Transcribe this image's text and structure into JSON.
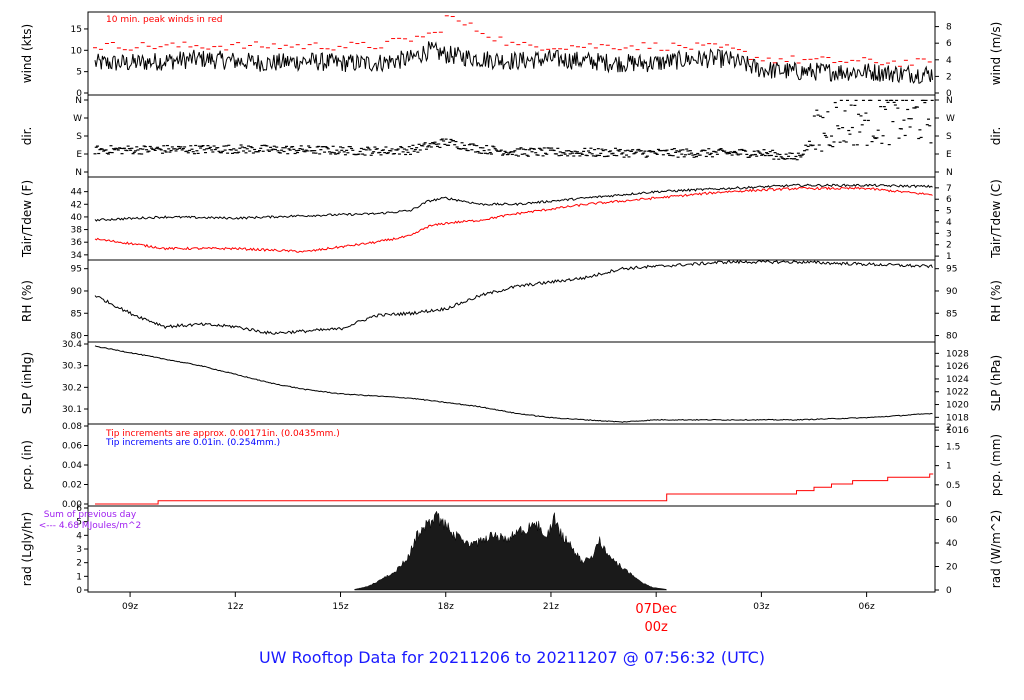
{
  "footer": {
    "title": "UW Rooftop Data for 20211206  to  20211207 @ 07:56:32  (UTC)"
  },
  "colors": {
    "obs": "#000000",
    "peak": "#ff0000",
    "dew": "#ff0000",
    "precip": "#ff0000",
    "note_red": "#ff0000",
    "note_blue": "#0000ff",
    "rad_note": "#a020f0",
    "date_label": "#ff0000"
  },
  "chart_data": [
    {
      "type": "line",
      "panel": "wind",
      "ylabel": "wind (kts)",
      "ylabel_right": "wind (m/s)",
      "ylim": [
        0,
        18.5
      ],
      "yticks": [
        0,
        5,
        10,
        15
      ],
      "yticks_right": [
        0,
        2,
        4,
        6,
        8
      ],
      "annotation": "10 min. peak winds in red",
      "series": [
        {
          "x": [
            8.0,
            9.0,
            10.0,
            11.0,
            12.0,
            13.0,
            14.0,
            15.0,
            16.0,
            17.0,
            17.5,
            18.0,
            19.0,
            20.0,
            21.0,
            22.0,
            23.0,
            24.0,
            25.0,
            26.0,
            27.0,
            28.0,
            29.0,
            30.0,
            31.0,
            31.9
          ],
          "values": [
            7,
            7,
            7.5,
            8,
            7.5,
            7,
            7.5,
            7,
            7,
            8,
            10,
            9,
            8,
            7.5,
            8,
            7.5,
            7,
            7,
            8,
            8,
            5.5,
            5,
            5,
            5,
            4.5,
            4.5
          ]
        },
        {
          "x": [
            8.0,
            10.0,
            12.0,
            14.0,
            16.0,
            17.8,
            18.0,
            20.0,
            22.0,
            24.0,
            26.0,
            27.0,
            29.0,
            31.9
          ],
          "values": [
            11,
            11,
            11,
            11,
            11,
            14,
            18,
            11,
            11,
            11,
            10.5,
            8,
            7.5,
            7
          ]
        }
      ]
    },
    {
      "type": "scatter",
      "panel": "dir",
      "ylabel": "dir.",
      "ylabel_right": "dir.",
      "yticks": [
        "N",
        "E",
        "S",
        "W",
        "N"
      ],
      "series": [
        {
          "x": [
            8.0,
            12.0,
            16.0,
            17.0,
            18.0,
            19.0,
            20.0,
            24.0,
            27.0,
            28.0,
            29.0,
            30.0,
            31.9
          ],
          "values": [
            110,
            115,
            105,
            110,
            150,
            115,
            100,
            95,
            95,
            70,
            250,
            270,
            280
          ]
        }
      ]
    },
    {
      "type": "line",
      "panel": "temp",
      "ylabel": "Tair/Tdew (F)",
      "ylabel_right": "Tair/Tdew (C)",
      "ylim": [
        33.5,
        46
      ],
      "yticks": [
        34,
        36,
        38,
        40,
        42,
        44
      ],
      "yticks_right": [
        1,
        2,
        3,
        4,
        5,
        6,
        7
      ],
      "series": [
        {
          "x": [
            8.0,
            10.0,
            12.0,
            14.0,
            16.0,
            17.0,
            17.5,
            18.0,
            19.0,
            20.0,
            22.0,
            24.0,
            26.0,
            28.0,
            30.0,
            31.9
          ],
          "values": [
            39.5,
            40,
            39.8,
            40.2,
            40.5,
            41,
            42.5,
            43,
            42,
            42,
            43,
            44,
            44.5,
            45,
            45,
            44.8
          ]
        },
        {
          "x": [
            8.0,
            9.0,
            10.0,
            12.0,
            14.0,
            16.0,
            17.0,
            17.5,
            18.0,
            19.0,
            20.0,
            22.0,
            24.0,
            26.0,
            28.0,
            30.0,
            31.9
          ],
          "values": [
            36.5,
            35.8,
            35,
            35,
            34.5,
            36,
            37,
            38.5,
            39,
            39.5,
            40.5,
            42,
            43,
            44,
            44.5,
            44.5,
            43.5
          ]
        }
      ]
    },
    {
      "type": "line",
      "panel": "rh",
      "ylabel": "RH (%)",
      "ylabel_right": "RH (%)",
      "ylim": [
        79,
        96.5
      ],
      "yticks": [
        80,
        85,
        90,
        95
      ],
      "yticks_right": [
        80,
        85,
        90,
        95
      ],
      "series": [
        {
          "x": [
            8.0,
            8.5,
            9.0,
            10.0,
            11.0,
            12.0,
            13.0,
            14.0,
            15.0,
            16.0,
            17.0,
            18.0,
            19.0,
            20.0,
            21.0,
            22.0,
            23.0,
            24.0,
            25.0,
            26.0,
            28.0,
            30.0,
            31.9
          ],
          "values": [
            89,
            87,
            85,
            82,
            82.5,
            82,
            80.5,
            81,
            81.5,
            84.5,
            85,
            86,
            89,
            91,
            92,
            93,
            95,
            95.5,
            96,
            96.5,
            96.5,
            96,
            95.5
          ]
        }
      ]
    },
    {
      "type": "line",
      "panel": "slp",
      "ylabel": "SLP (inHg)",
      "ylabel_right": "SLP (hPa)",
      "ylim": [
        30.04,
        30.4
      ],
      "yticks": [
        30.1,
        30.2,
        30.3,
        30.4
      ],
      "yticks_right": [
        1016,
        1018,
        1020,
        1022,
        1024,
        1026,
        1028
      ],
      "series": [
        {
          "x": [
            8.0,
            9.0,
            10.0,
            11.0,
            12.0,
            13.0,
            14.0,
            15.0,
            16.0,
            17.0,
            18.0,
            19.0,
            20.0,
            21.0,
            22.0,
            23.0,
            24.0,
            25.0,
            26.0,
            28.0,
            30.0,
            31.0,
            31.9
          ],
          "values": [
            30.39,
            30.36,
            30.33,
            30.3,
            30.26,
            30.22,
            30.19,
            30.17,
            30.16,
            30.15,
            30.13,
            30.11,
            30.08,
            30.06,
            30.05,
            30.04,
            30.05,
            30.05,
            30.05,
            30.05,
            30.06,
            30.07,
            30.08
          ]
        }
      ]
    },
    {
      "type": "line",
      "panel": "precip",
      "ylabel": "pcp. (in)",
      "ylabel_right": "pcp. (mm)",
      "ylim": [
        0,
        0.08
      ],
      "yticks": [
        0.0,
        0.02,
        0.04,
        0.06,
        0.08
      ],
      "yticks_right": [
        0,
        0.5,
        1,
        1.5,
        2
      ],
      "annotations": [
        "Tip increments are approx. 0.00171in. (0.0435mm.)",
        "Tip increments are 0.01in. (0.254mm.)"
      ],
      "series": [
        {
          "x": [
            8.0,
            9.8,
            9.8,
            24.3,
            24.3,
            28.0,
            28.0,
            28.5,
            28.5,
            29.0,
            29.0,
            29.6,
            29.6,
            30.6,
            30.6,
            31.8,
            31.8,
            31.9
          ],
          "values": [
            0,
            0,
            0.0034,
            0.0034,
            0.0103,
            0.0103,
            0.0137,
            0.0137,
            0.0171,
            0.0171,
            0.0205,
            0.0205,
            0.024,
            0.024,
            0.0274,
            0.0274,
            0.0308,
            0.0308
          ]
        }
      ]
    },
    {
      "type": "area",
      "panel": "rad",
      "ylabel": "rad (Lgly/hr)",
      "ylabel_right": "rad (W/m^2)",
      "ylim": [
        0,
        6
      ],
      "yticks": [
        0,
        1,
        2,
        3,
        4,
        5,
        6
      ],
      "yticks_right": [
        0,
        20,
        40,
        60
      ],
      "annotation": [
        "Sum of previous day",
        "<--- 4.68 MJoules/m^2"
      ],
      "series": [
        {
          "x": [
            15.4,
            15.8,
            16.2,
            16.6,
            16.9,
            17.2,
            17.5,
            17.7,
            17.9,
            18.2,
            18.5,
            18.8,
            19.1,
            19.4,
            19.7,
            20.0,
            20.3,
            20.6,
            20.9,
            21.1,
            21.3,
            21.6,
            21.9,
            22.2,
            22.4,
            22.7,
            23.0,
            23.3,
            23.6,
            23.9,
            24.3
          ],
          "values": [
            0.05,
            0.3,
            0.9,
            1.6,
            2.5,
            4.5,
            5.3,
            5.9,
            5.4,
            4.6,
            3.9,
            3.6,
            4.2,
            4.4,
            4.0,
            4.6,
            5.0,
            5.2,
            4.4,
            5.8,
            4.4,
            3.4,
            2.2,
            2.8,
            4.0,
            2.5,
            1.9,
            1.2,
            0.6,
            0.2,
            0.05
          ]
        }
      ]
    }
  ],
  "xaxis": {
    "ticks": [
      {
        "x": 9,
        "label": "09z"
      },
      {
        "x": 12,
        "label": "12z"
      },
      {
        "x": 15,
        "label": "15z"
      },
      {
        "x": 18,
        "label": "18z"
      },
      {
        "x": 21,
        "label": "21z"
      },
      {
        "x": 24,
        "label": "07Dec",
        "label2": "00z",
        "highlight": true
      },
      {
        "x": 27,
        "label": "03z"
      },
      {
        "x": 30,
        "label": "06z"
      }
    ]
  }
}
